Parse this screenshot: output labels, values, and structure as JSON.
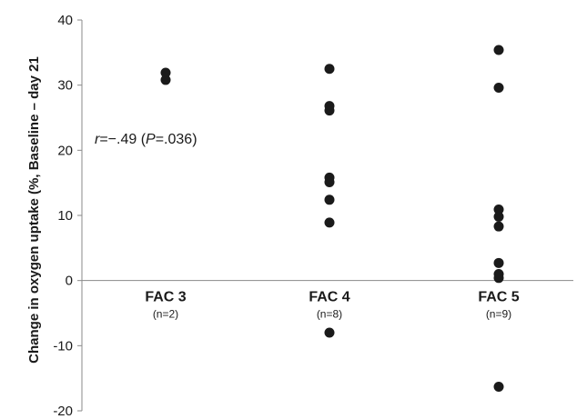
{
  "chart_data": {
    "type": "scatter",
    "ylabel": "Change in oxygen uptake (%, Baseline – day 21",
    "ylim": [
      -20,
      40
    ],
    "yticks": [
      -20,
      -10,
      0,
      10,
      20,
      30,
      40
    ],
    "categories": [
      {
        "label": "FAC 3",
        "sublabel": "(n=2)"
      },
      {
        "label": "FAC 4",
        "sublabel": "(n=8)"
      },
      {
        "label": "FAC 5",
        "sublabel": "(n=9)"
      }
    ],
    "series": [
      {
        "values": [
          {
            "category": "FAC 3",
            "y": 31.9
          },
          {
            "category": "FAC 3",
            "y": 30.8
          },
          {
            "category": "FAC 4",
            "y": 32.5
          },
          {
            "category": "FAC 4",
            "y": 26.8
          },
          {
            "category": "FAC 4",
            "y": 26.1
          },
          {
            "category": "FAC 4",
            "y": 15.8
          },
          {
            "category": "FAC 4",
            "y": 15.1
          },
          {
            "category": "FAC 4",
            "y": 12.4
          },
          {
            "category": "FAC 4",
            "y": 8.9
          },
          {
            "category": "FAC 4",
            "y": -8.0
          },
          {
            "category": "FAC 5",
            "y": 35.4
          },
          {
            "category": "FAC 5",
            "y": 29.6
          },
          {
            "category": "FAC 5",
            "y": 10.9
          },
          {
            "category": "FAC 5",
            "y": 9.8
          },
          {
            "category": "FAC 5",
            "y": 8.3
          },
          {
            "category": "FAC 5",
            "y": 2.7
          },
          {
            "category": "FAC 5",
            "y": 1.0
          },
          {
            "category": "FAC 5",
            "y": 0.4
          },
          {
            "category": "FAC 5",
            "y": -16.3
          }
        ]
      }
    ],
    "annotation": {
      "r_symbol": "r",
      "r_value": "=−.49 (",
      "p_symbol": "P",
      "p_value": "=.036)"
    },
    "grid": false,
    "legend": "none"
  }
}
